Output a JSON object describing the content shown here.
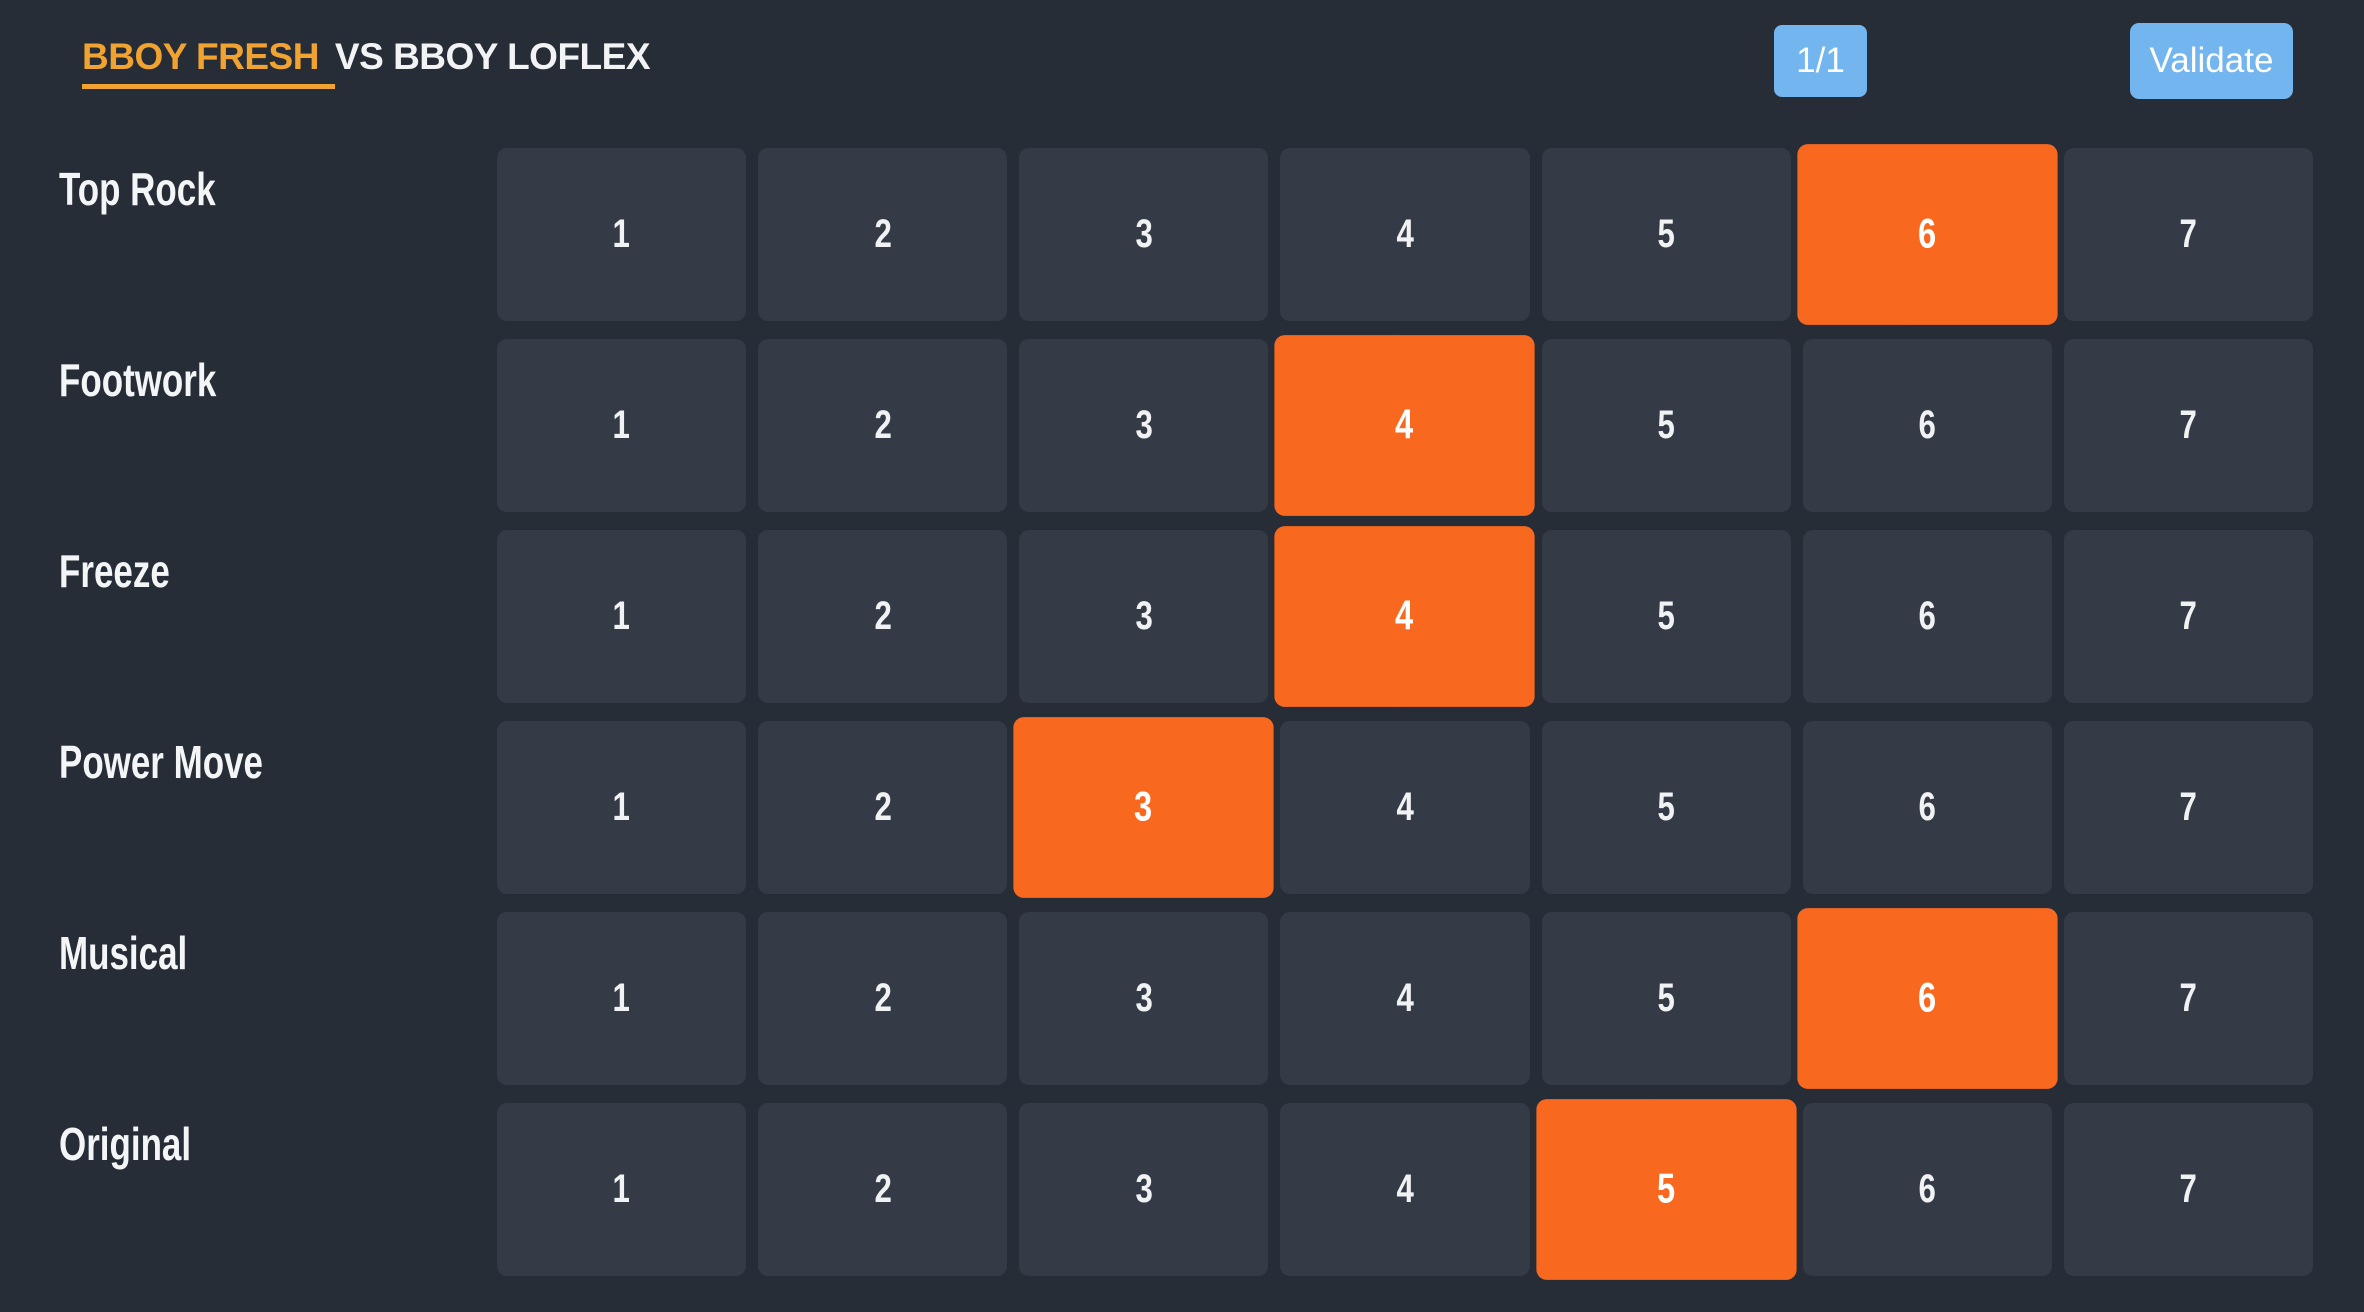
{
  "colors": {
    "page_bg": "#262D37",
    "cell_bg": "#343B46",
    "selected_bg": "#F8691F",
    "accent_blue": "#73B5EF",
    "accent_amber": "#F0A330",
    "text_light": "#F2F3F5"
  },
  "header": {
    "competitor_left": "BBOY FRESH",
    "separator": "VS",
    "competitor_right": "BBOY LOFLEX",
    "round_counter": "1/1",
    "validate_label": "Validate"
  },
  "scoreboard": {
    "scale_values": [
      1,
      2,
      3,
      4,
      5,
      6,
      7
    ],
    "categories": [
      {
        "label": "Top Rock",
        "selected": 6
      },
      {
        "label": "Footwork",
        "selected": 4
      },
      {
        "label": "Freeze",
        "selected": 4
      },
      {
        "label": "Power Move",
        "selected": 3
      },
      {
        "label": "Musical",
        "selected": 6
      },
      {
        "label": "Original",
        "selected": 5
      }
    ]
  }
}
